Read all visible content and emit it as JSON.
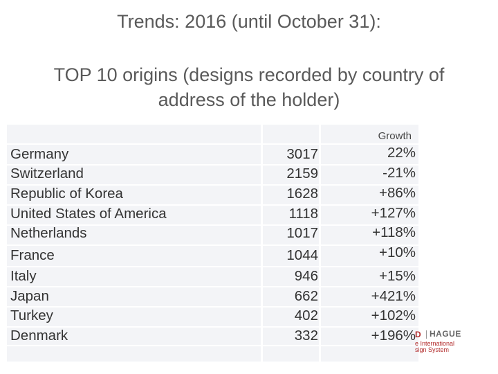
{
  "title": "Trends: 2016 (until October 31):",
  "subtitle": "TOP 10 origins (designs recorded by country of address of the holder)",
  "table": {
    "growth_header": "Growth",
    "rows": [
      {
        "country": "Germany",
        "value": "3017",
        "growth": "22%"
      },
      {
        "country": "Switzerland",
        "value": "2159",
        "growth": "-21%"
      },
      {
        "country": "Republic of Korea",
        "value": "1628",
        "growth": "+86%"
      },
      {
        "country": "United States of America",
        "value": "1118",
        "growth": "+127%"
      },
      {
        "country": "Netherlands",
        "value": "1017",
        "growth": "+118%"
      },
      {
        "country": "France",
        "value": "1044",
        "growth": "+10%"
      },
      {
        "country": "Italy",
        "value": "946",
        "growth": "+15%"
      },
      {
        "country": "Japan",
        "value": "662",
        "growth": "+421%"
      },
      {
        "country": "Turkey",
        "value": "402",
        "growth": "+102%"
      },
      {
        "country": "Denmark",
        "value": "332",
        "growth": "+196%"
      }
    ]
  },
  "logo": {
    "mark": "D",
    "word": "HAGUE",
    "line1": "e International",
    "line2": "sign System"
  },
  "colors": {
    "table_background": "#f3f4f7",
    "logo_accent": "#b22a2a"
  }
}
